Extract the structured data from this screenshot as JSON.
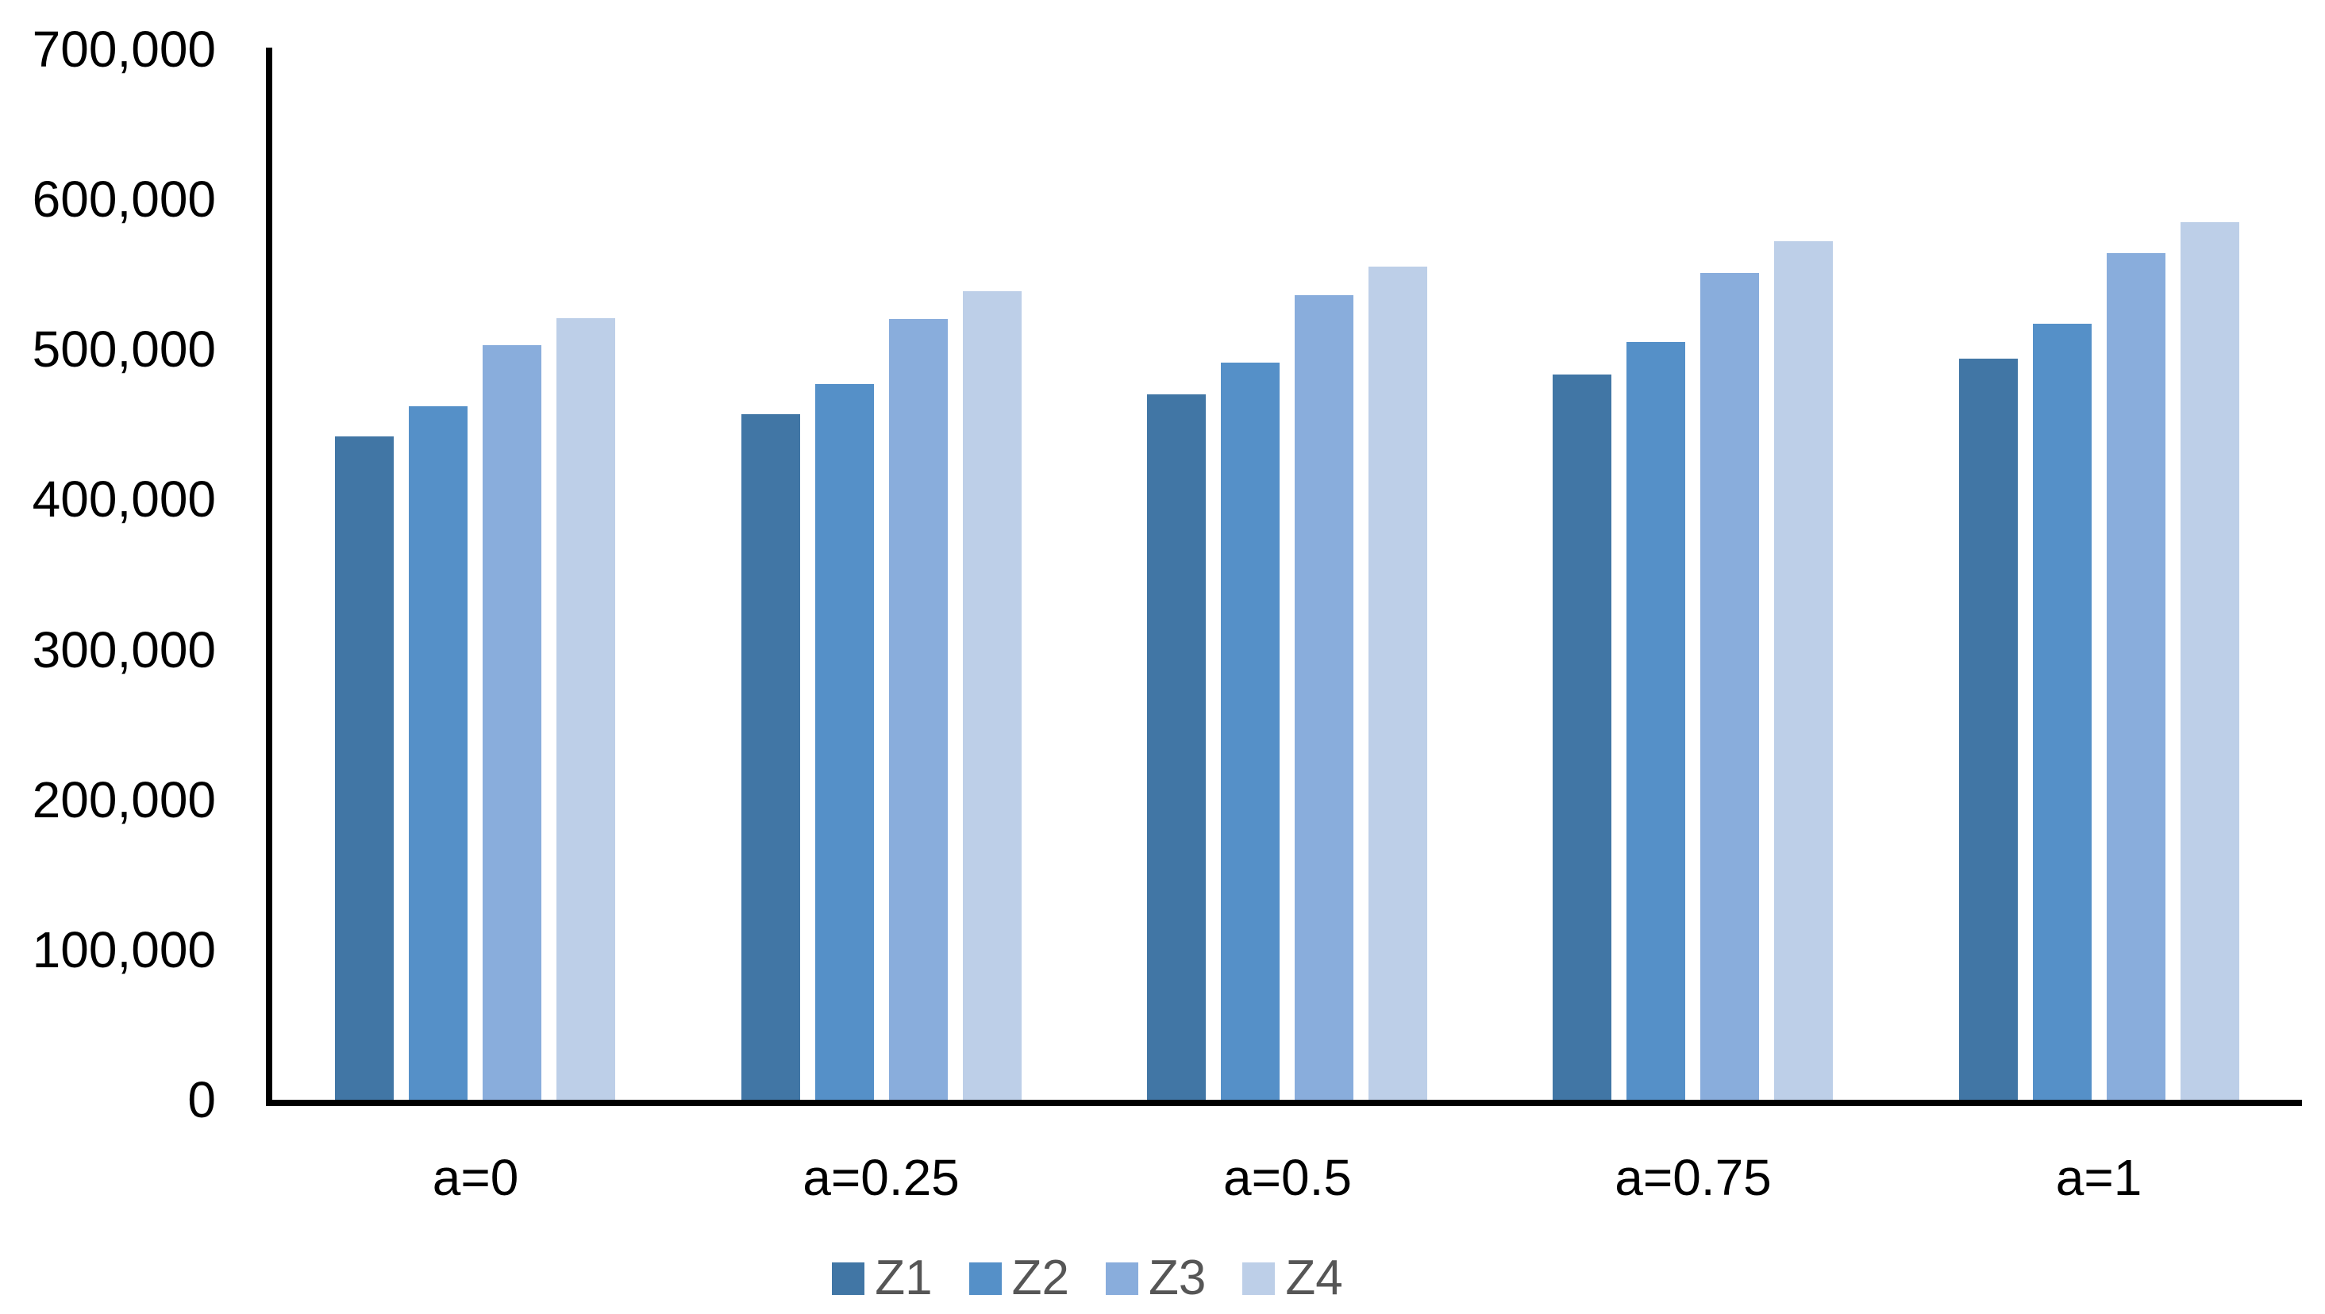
{
  "chart_data": {
    "type": "bar",
    "title": "",
    "categories": [
      "a=0",
      "a=0.25",
      "a=0.5",
      "a=0.75",
      "a=1"
    ],
    "series": [
      {
        "name": "Z1",
        "color": "#4176A5",
        "values": [
          442000,
          457000,
          470000,
          483000,
          494000
        ]
      },
      {
        "name": "Z2",
        "color": "#5590C8",
        "values": [
          462000,
          477000,
          491000,
          505000,
          517000
        ]
      },
      {
        "name": "Z3",
        "color": "#89ADDC",
        "values": [
          503000,
          520000,
          536000,
          551000,
          564000
        ]
      },
      {
        "name": "Z4",
        "color": "#BDCFE8",
        "values": [
          521000,
          539000,
          555000,
          572000,
          585000
        ]
      }
    ],
    "ylim": [
      0,
      700000
    ],
    "ytick_step": 100000,
    "ytick_labels": [
      "0",
      "100,000",
      "200,000",
      "300,000",
      "400,000",
      "500,000",
      "600,000",
      "700,000"
    ],
    "xlabel": "",
    "ylabel": "",
    "grid": false,
    "legend_position": "bottom",
    "axis_color": "#000000",
    "tick_label_color": "#000000",
    "legend_text_color": "#565656",
    "background_color": "#ffffff"
  }
}
